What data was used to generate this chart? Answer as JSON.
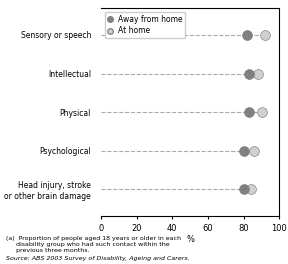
{
  "categories": [
    "Sensory or speech",
    "Intellectual",
    "Physical",
    "Psychological",
    "Head injury, stroke\nor other brain damage"
  ],
  "away_from_home": [
    82,
    83,
    83,
    80,
    80
  ],
  "at_home": [
    92,
    88,
    90,
    86,
    84
  ],
  "away_color": "#808080",
  "at_home_color": "#d0d0d0",
  "marker_size": 10,
  "xlim": [
    0,
    100
  ],
  "xticks": [
    0,
    20,
    40,
    60,
    80,
    100
  ],
  "xlabel": "%",
  "legend_away": "Away from home",
  "legend_at_home": "At home",
  "footnote": "(a)  Proportion of people aged 18 years or older in each\n     disability group who had such contact within the\n     previous three months.",
  "source": "Source: ABS 2003 Survey of Disability, Ageing and Carers."
}
